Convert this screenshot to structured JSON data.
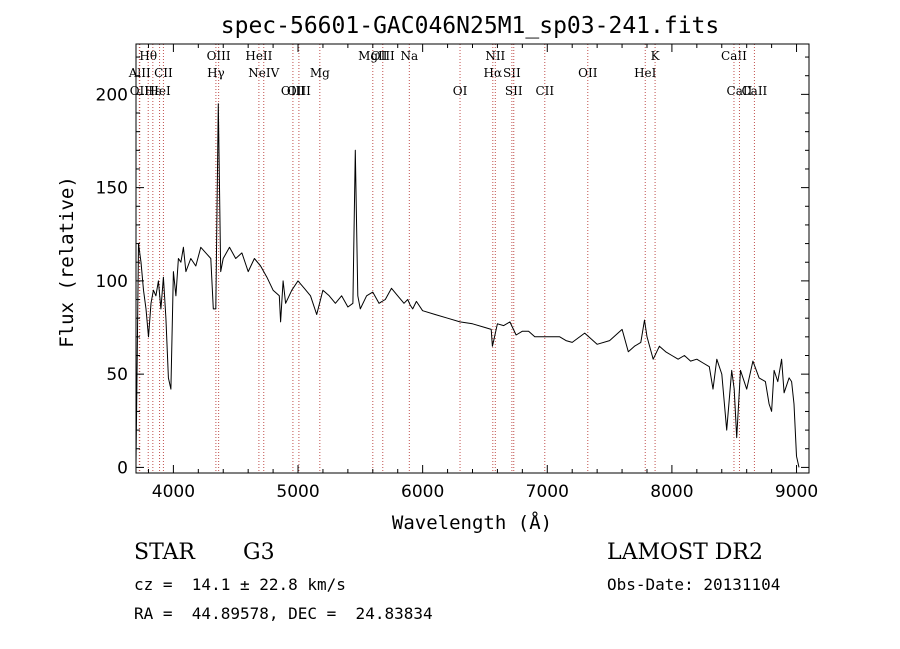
{
  "chart_data": {
    "type": "line",
    "title": "spec-56601-GAC046N25M1_sp03-241.fits",
    "xlabel": "Wavelength (Å)",
    "ylabel": "Flux (relative)",
    "xlim": [
      3700,
      9100
    ],
    "ylim": [
      -3,
      227
    ],
    "xticks": [
      4000,
      5000,
      6000,
      7000,
      8000,
      9000
    ],
    "yticks": [
      0,
      50,
      100,
      150,
      200
    ],
    "grid": false,
    "spectral_lines": [
      {
        "label": "Hθ",
        "wavelength": 3798,
        "row": 0
      },
      {
        "label": "AlII",
        "wavelength": 3730,
        "row": 1
      },
      {
        "label": "OII",
        "wavelength": 3727,
        "row": 2
      },
      {
        "label": "Hε",
        "wavelength": 3835,
        "row": 2
      },
      {
        "label": "HeI",
        "wavelength": 3889,
        "row": 2
      },
      {
        "label": "CII",
        "wavelength": 3920,
        "row": 1
      },
      {
        "label": "OIII",
        "wavelength": 4363,
        "row": 0
      },
      {
        "label": "Hγ",
        "wavelength": 4341,
        "row": 1
      },
      {
        "label": "HeII",
        "wavelength": 4686,
        "row": 0
      },
      {
        "label": "NeIV",
        "wavelength": 4725,
        "row": 1
      },
      {
        "label": "OIII",
        "wavelength": 4959,
        "row": 2
      },
      {
        "label": "OIII",
        "wavelength": 5007,
        "row": 2
      },
      {
        "label": "Mg",
        "wavelength": 5175,
        "row": 1
      },
      {
        "label": "MgII",
        "wavelength": 5600,
        "row": 0
      },
      {
        "label": "OIII",
        "wavelength": 5680,
        "row": 0
      },
      {
        "label": "Na",
        "wavelength": 5893,
        "row": 0
      },
      {
        "label": "OI",
        "wavelength": 6300,
        "row": 2
      },
      {
        "label": "NII",
        "wavelength": 6583,
        "row": 0
      },
      {
        "label": "Hα",
        "wavelength": 6563,
        "row": 1
      },
      {
        "label": "SII",
        "wavelength": 6716,
        "row": 1
      },
      {
        "label": "SII",
        "wavelength": 6731,
        "row": 2
      },
      {
        "label": "CII",
        "wavelength": 6980,
        "row": 2
      },
      {
        "label": "OII",
        "wavelength": 7325,
        "row": 1
      },
      {
        "label": "HeI",
        "wavelength": 7786,
        "row": 1
      },
      {
        "label": "K",
        "wavelength": 7865,
        "row": 0
      },
      {
        "label": "CaII",
        "wavelength": 8498,
        "row": 0
      },
      {
        "label": "CaII",
        "wavelength": 8542,
        "row": 2
      },
      {
        "label": "CaII",
        "wavelength": 8662,
        "row": 2
      }
    ],
    "series": [
      {
        "x": [
          3700,
          3720,
          3740,
          3760,
          3780,
          3800,
          3820,
          3840,
          3860,
          3880,
          3900,
          3920,
          3940,
          3960,
          3980,
          4000,
          4020,
          4040,
          4060,
          4080,
          4100,
          4140,
          4180,
          4220,
          4260,
          4300,
          4320,
          4340,
          4360,
          4380,
          4400,
          4450,
          4500,
          4550,
          4600,
          4650,
          4700,
          4750,
          4800,
          4850,
          4860,
          4880,
          4900,
          4950,
          5000,
          5050,
          5100,
          5150,
          5200,
          5250,
          5300,
          5350,
          5400,
          5440,
          5460,
          5480,
          5500,
          5550,
          5600,
          5650,
          5700,
          5750,
          5800,
          5850,
          5880,
          5900,
          5920,
          5950,
          6000,
          6100,
          6200,
          6300,
          6400,
          6500,
          6550,
          6560,
          6570,
          6600,
          6650,
          6700,
          6750,
          6800,
          6850,
          6900,
          7000,
          7100,
          7150,
          7200,
          7300,
          7400,
          7500,
          7600,
          7650,
          7700,
          7750,
          7780,
          7800,
          7850,
          7900,
          7950,
          8000,
          8050,
          8100,
          8150,
          8200,
          8250,
          8300,
          8330,
          8360,
          8400,
          8440,
          8480,
          8500,
          8520,
          8550,
          8600,
          8650,
          8700,
          8750,
          8780,
          8800,
          8820,
          8850,
          8880,
          8900,
          8940,
          8960,
          8980,
          9000,
          9020
        ],
        "y": [
          2,
          120,
          110,
          95,
          85,
          70,
          88,
          95,
          92,
          100,
          85,
          102,
          80,
          48,
          42,
          105,
          92,
          112,
          110,
          118,
          105,
          112,
          108,
          118,
          115,
          112,
          85,
          85,
          195,
          105,
          112,
          118,
          112,
          115,
          105,
          112,
          108,
          102,
          95,
          92,
          78,
          100,
          88,
          95,
          100,
          96,
          92,
          82,
          95,
          92,
          88,
          92,
          86,
          88,
          170,
          92,
          85,
          92,
          94,
          88,
          90,
          96,
          92,
          88,
          90,
          87,
          85,
          89,
          84,
          82,
          80,
          78,
          77,
          75,
          74,
          65,
          68,
          77,
          76,
          78,
          71,
          73,
          73,
          70,
          70,
          70,
          68,
          67,
          72,
          66,
          68,
          74,
          62,
          65,
          67,
          79,
          70,
          58,
          65,
          62,
          60,
          58,
          60,
          57,
          58,
          56,
          54,
          42,
          58,
          50,
          20,
          52,
          42,
          16,
          52,
          42,
          57,
          48,
          46,
          34,
          30,
          52,
          46,
          58,
          40,
          48,
          46,
          34,
          6,
          0
        ]
      }
    ]
  },
  "info": {
    "class_label": "STAR",
    "subclass": "G3",
    "survey": "LAMOST DR2",
    "redshift_line": "cz =  14.1 ± 22.8 km/s",
    "obs_date_line": "Obs-Date: 20131104",
    "coords_line": "RA =  44.89578, DEC =  24.83834"
  }
}
